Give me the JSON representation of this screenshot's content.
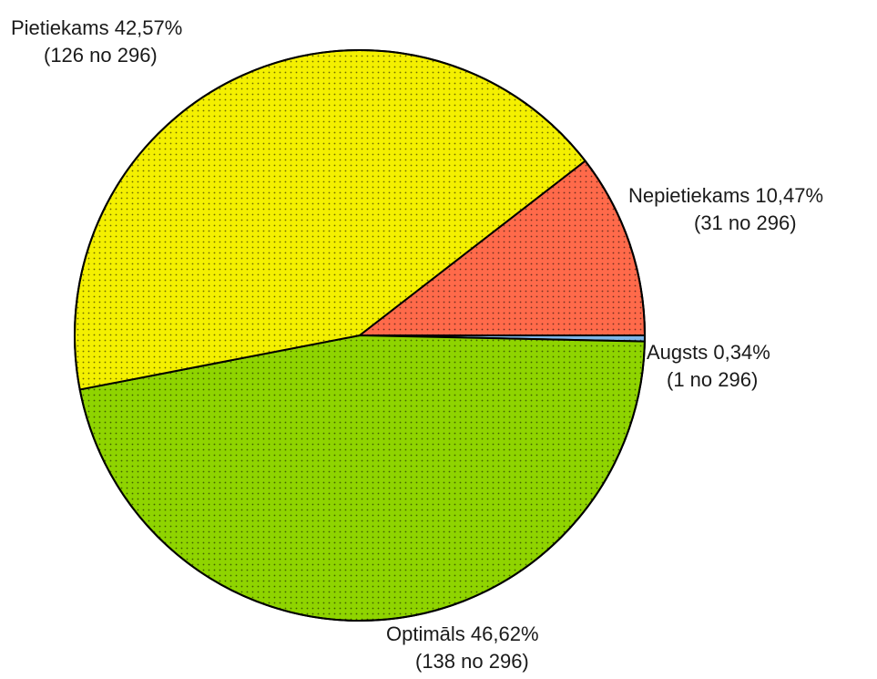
{
  "chart_data": {
    "type": "pie",
    "total": 296,
    "slices": [
      {
        "name": "Augsts",
        "value": 1,
        "percent_label": "0,34%",
        "count_label": "(1 no 296)",
        "color": "#7eb6e8"
      },
      {
        "name": "Optimāls",
        "value": 138,
        "percent_label": "46,62%",
        "count_label": "(138 no 296)",
        "color": "#8fd400"
      },
      {
        "name": "Pietiekams",
        "value": 126,
        "percent_label": "42,57%",
        "count_label": "(126 no 296)",
        "color": "#f4f000"
      },
      {
        "name": "Nepietiekams",
        "value": 31,
        "percent_label": "10,47%",
        "count_label": "(31 no 296)",
        "color": "#ff6a4a"
      }
    ],
    "start_direction": "east",
    "order": "clockwise"
  }
}
